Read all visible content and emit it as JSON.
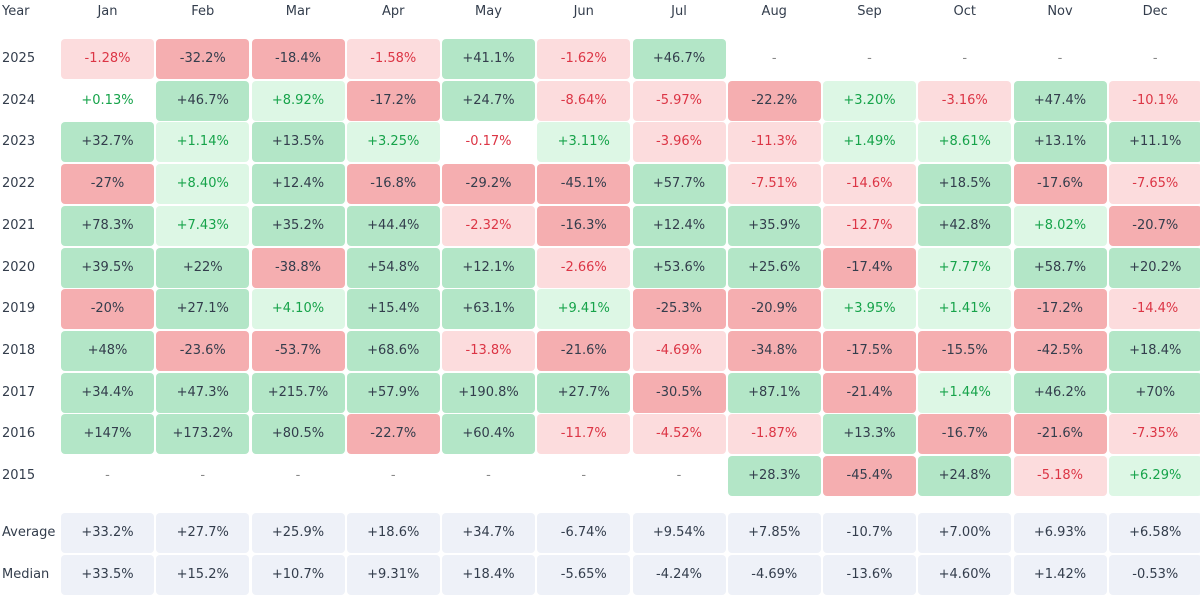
{
  "chart_data": {
    "type": "heatmap",
    "corner_label": "Year",
    "columns": [
      "Jan",
      "Feb",
      "Mar",
      "Apr",
      "May",
      "Jun",
      "Jul",
      "Aug",
      "Sep",
      "Oct",
      "Nov",
      "Dec"
    ],
    "rows": [
      {
        "label": "2025",
        "values": [
          "-1.28%",
          "-32.2%",
          "-18.4%",
          "-1.58%",
          "+41.1%",
          "-1.62%",
          "+46.7%",
          "-",
          "-",
          "-",
          "-",
          "-"
        ]
      },
      {
        "label": "2024",
        "values": [
          "+0.13%",
          "+46.7%",
          "+8.92%",
          "-17.2%",
          "+24.7%",
          "-8.64%",
          "-5.97%",
          "-22.2%",
          "+3.20%",
          "-3.16%",
          "+47.4%",
          "-10.1%"
        ]
      },
      {
        "label": "2023",
        "values": [
          "+32.7%",
          "+1.14%",
          "+13.5%",
          "+3.25%",
          "-0.17%",
          "+3.11%",
          "-3.96%",
          "-11.3%",
          "+1.49%",
          "+8.61%",
          "+13.1%",
          "+11.1%"
        ]
      },
      {
        "label": "2022",
        "values": [
          "-27%",
          "+8.40%",
          "+12.4%",
          "-16.8%",
          "-29.2%",
          "-45.1%",
          "+57.7%",
          "-7.51%",
          "-14.6%",
          "+18.5%",
          "-17.6%",
          "-7.65%"
        ]
      },
      {
        "label": "2021",
        "values": [
          "+78.3%",
          "+7.43%",
          "+35.2%",
          "+44.4%",
          "-2.32%",
          "-16.3%",
          "+12.4%",
          "+35.9%",
          "-12.7%",
          "+42.8%",
          "+8.02%",
          "-20.7%"
        ]
      },
      {
        "label": "2020",
        "values": [
          "+39.5%",
          "+22%",
          "-38.8%",
          "+54.8%",
          "+12.1%",
          "-2.66%",
          "+53.6%",
          "+25.6%",
          "-17.4%",
          "+7.77%",
          "+58.7%",
          "+20.2%"
        ]
      },
      {
        "label": "2019",
        "values": [
          "-20%",
          "+27.1%",
          "+4.10%",
          "+15.4%",
          "+63.1%",
          "+9.41%",
          "-25.3%",
          "-20.9%",
          "+3.95%",
          "+1.41%",
          "-17.2%",
          "-14.4%"
        ]
      },
      {
        "label": "2018",
        "values": [
          "+48%",
          "-23.6%",
          "-53.7%",
          "+68.6%",
          "-13.8%",
          "-21.6%",
          "-4.69%",
          "-34.8%",
          "-17.5%",
          "-15.5%",
          "-42.5%",
          "+18.4%"
        ]
      },
      {
        "label": "2017",
        "values": [
          "+34.4%",
          "+47.3%",
          "+215.7%",
          "+57.9%",
          "+190.8%",
          "+27.7%",
          "-30.5%",
          "+87.1%",
          "-21.4%",
          "+1.44%",
          "+46.2%",
          "+70%"
        ]
      },
      {
        "label": "2016",
        "values": [
          "+147%",
          "+173.2%",
          "+80.5%",
          "-22.7%",
          "+60.4%",
          "-11.7%",
          "-4.52%",
          "-1.87%",
          "+13.3%",
          "-16.7%",
          "-21.6%",
          "-7.35%"
        ]
      },
      {
        "label": "2015",
        "values": [
          "-",
          "-",
          "-",
          "-",
          "-",
          "-",
          "-",
          "+28.3%",
          "-45.4%",
          "+24.8%",
          "-5.18%",
          "+6.29%"
        ]
      }
    ],
    "summary_rows": [
      {
        "label": "Average",
        "values": [
          "+33.2%",
          "+27.7%",
          "+25.9%",
          "+18.6%",
          "+34.7%",
          "-6.74%",
          "+9.54%",
          "+7.85%",
          "-10.7%",
          "+7.00%",
          "+6.93%",
          "+6.58%"
        ]
      },
      {
        "label": "Median",
        "values": [
          "+33.5%",
          "+15.2%",
          "+10.7%",
          "+9.31%",
          "+18.4%",
          "-5.65%",
          "-4.24%",
          "-4.69%",
          "-13.6%",
          "+4.60%",
          "+1.42%",
          "-0.53%"
        ]
      }
    ],
    "colors": {
      "strong_positive_bg": "#b3e6c7",
      "light_positive_bg": "#ddf7e5",
      "strong_negative_bg": "#f5aeb0",
      "light_negative_bg": "#fcdcdd",
      "summary_bg": "#eef1f8",
      "positive_text": "#16a34a",
      "negative_text": "#dc3545",
      "neutral_text": "#333d4c",
      "empty_text": "#888888"
    }
  }
}
